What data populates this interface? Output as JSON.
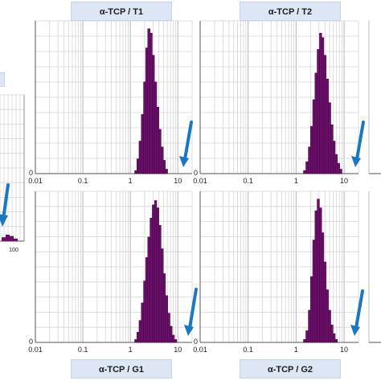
{
  "chart_data": [
    {
      "type": "bar",
      "title": "α-TCP / T1",
      "xscale": "log",
      "xlim": [
        0.01,
        20
      ],
      "ylabel_zero": "0",
      "xticks": [
        "0.01",
        "0.1",
        "1",
        "10"
      ],
      "grid": true,
      "bar_color": "#6b0f6b",
      "arrow_color": "#1a78c2",
      "bins": [
        {
          "x": 1.3,
          "y": 2
        },
        {
          "x": 1.45,
          "y": 10
        },
        {
          "x": 1.6,
          "y": 22
        },
        {
          "x": 1.8,
          "y": 40
        },
        {
          "x": 2.0,
          "y": 62
        },
        {
          "x": 2.2,
          "y": 85
        },
        {
          "x": 2.45,
          "y": 98
        },
        {
          "x": 2.75,
          "y": 95
        },
        {
          "x": 3.05,
          "y": 80
        },
        {
          "x": 3.4,
          "y": 62
        },
        {
          "x": 3.8,
          "y": 45
        },
        {
          "x": 4.2,
          "y": 30
        },
        {
          "x": 4.7,
          "y": 18
        },
        {
          "x": 5.2,
          "y": 9
        },
        {
          "x": 5.8,
          "y": 3
        }
      ]
    },
    {
      "type": "bar",
      "title": "α-TCP / T2",
      "xscale": "log",
      "xlim": [
        0.01,
        20
      ],
      "ylabel_zero": "0",
      "xticks": [
        "0.01",
        "0.1",
        "1",
        "10"
      ],
      "grid": true,
      "bar_color": "#6b0f6b",
      "arrow_color": "#1a78c2",
      "bins": [
        {
          "x": 1.5,
          "y": 2
        },
        {
          "x": 1.7,
          "y": 8
        },
        {
          "x": 1.9,
          "y": 18
        },
        {
          "x": 2.1,
          "y": 32
        },
        {
          "x": 2.35,
          "y": 50
        },
        {
          "x": 2.6,
          "y": 68
        },
        {
          "x": 2.9,
          "y": 84
        },
        {
          "x": 3.25,
          "y": 95
        },
        {
          "x": 3.6,
          "y": 92
        },
        {
          "x": 4.0,
          "y": 80
        },
        {
          "x": 4.5,
          "y": 64
        },
        {
          "x": 5.0,
          "y": 48
        },
        {
          "x": 5.6,
          "y": 33
        },
        {
          "x": 6.2,
          "y": 22
        },
        {
          "x": 6.9,
          "y": 13
        },
        {
          "x": 7.7,
          "y": 7
        },
        {
          "x": 8.6,
          "y": 3
        }
      ]
    },
    {
      "type": "bar",
      "title": "α-TCP / G1",
      "xscale": "log",
      "xlim": [
        0.01,
        20
      ],
      "ylabel_zero": "0",
      "xticks": [
        "0.01",
        "0.1",
        "1",
        "10"
      ],
      "grid": true,
      "bar_color": "#6b0f6b",
      "arrow_color": "#1a78c2",
      "bins": [
        {
          "x": 1.3,
          "y": 2
        },
        {
          "x": 1.45,
          "y": 7
        },
        {
          "x": 1.6,
          "y": 15
        },
        {
          "x": 1.8,
          "y": 27
        },
        {
          "x": 2.0,
          "y": 42
        },
        {
          "x": 2.2,
          "y": 58
        },
        {
          "x": 2.45,
          "y": 72
        },
        {
          "x": 2.75,
          "y": 85
        },
        {
          "x": 3.05,
          "y": 94
        },
        {
          "x": 3.4,
          "y": 97
        },
        {
          "x": 3.8,
          "y": 92
        },
        {
          "x": 4.2,
          "y": 80
        },
        {
          "x": 4.7,
          "y": 64
        },
        {
          "x": 5.2,
          "y": 47
        },
        {
          "x": 5.8,
          "y": 32
        },
        {
          "x": 6.5,
          "y": 20
        },
        {
          "x": 7.2,
          "y": 11
        },
        {
          "x": 8.0,
          "y": 5
        },
        {
          "x": 9.0,
          "y": 2
        }
      ]
    },
    {
      "type": "bar",
      "title": "α-TCP / G2",
      "xscale": "log",
      "xlim": [
        0.01,
        20
      ],
      "ylabel_zero": "0",
      "xticks": [
        "0.01",
        "0.1",
        "1",
        "10"
      ],
      "grid": true,
      "bar_color": "#6b0f6b",
      "arrow_color": "#1a78c2",
      "bins": [
        {
          "x": 1.5,
          "y": 2
        },
        {
          "x": 1.7,
          "y": 8
        },
        {
          "x": 1.9,
          "y": 22
        },
        {
          "x": 2.1,
          "y": 45
        },
        {
          "x": 2.35,
          "y": 70
        },
        {
          "x": 2.6,
          "y": 90
        },
        {
          "x": 2.9,
          "y": 98
        },
        {
          "x": 3.25,
          "y": 92
        },
        {
          "x": 3.6,
          "y": 75
        },
        {
          "x": 4.0,
          "y": 55
        },
        {
          "x": 4.5,
          "y": 36
        },
        {
          "x": 5.0,
          "y": 22
        },
        {
          "x": 5.6,
          "y": 12
        },
        {
          "x": 6.2,
          "y": 6
        },
        {
          "x": 6.9,
          "y": 2
        }
      ]
    },
    {
      "type": "bar",
      "title": "",
      "note": "partial chart cropped at left edge",
      "xscale": "log",
      "xticks": [
        "100"
      ],
      "grid": true,
      "bar_color": "#6b0f6b",
      "arrow_color": "#1a78c2",
      "bins": [
        {
          "x": 1,
          "y": 3
        },
        {
          "x": 2,
          "y": 5
        },
        {
          "x": 3,
          "y": 4
        },
        {
          "x": 4,
          "y": 2
        }
      ]
    }
  ]
}
